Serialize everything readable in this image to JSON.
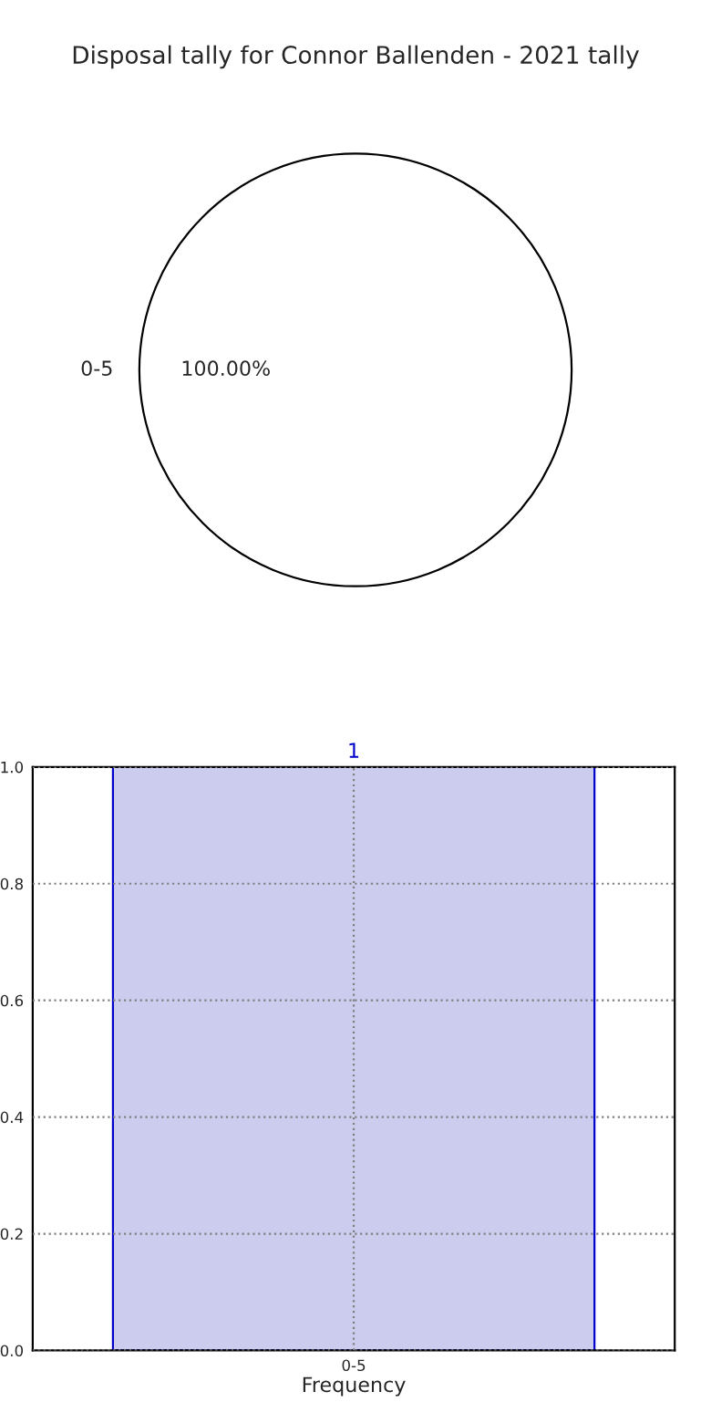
{
  "chart_data": [
    {
      "type": "pie",
      "title": "Disposal tally for Connor Ballenden - 2021 tally",
      "categories": [
        "0-5"
      ],
      "values": [
        100
      ],
      "colors": [
        "#ffffff"
      ],
      "value_labels": [
        "100.00%"
      ]
    },
    {
      "type": "bar",
      "xlabel": "Frequency",
      "categories": [
        "0-5"
      ],
      "values": [
        1
      ],
      "color": "#ccccee",
      "ylim": [
        0.0,
        1.0
      ],
      "yticks": [
        {
          "value": 0,
          "label": "0.0"
        },
        0.2,
        0.4,
        0.6,
        0.8,
        {
          "value": 1,
          "label": "1.0"
        }
      ],
      "grid": true,
      "data_labels": true
    }
  ]
}
